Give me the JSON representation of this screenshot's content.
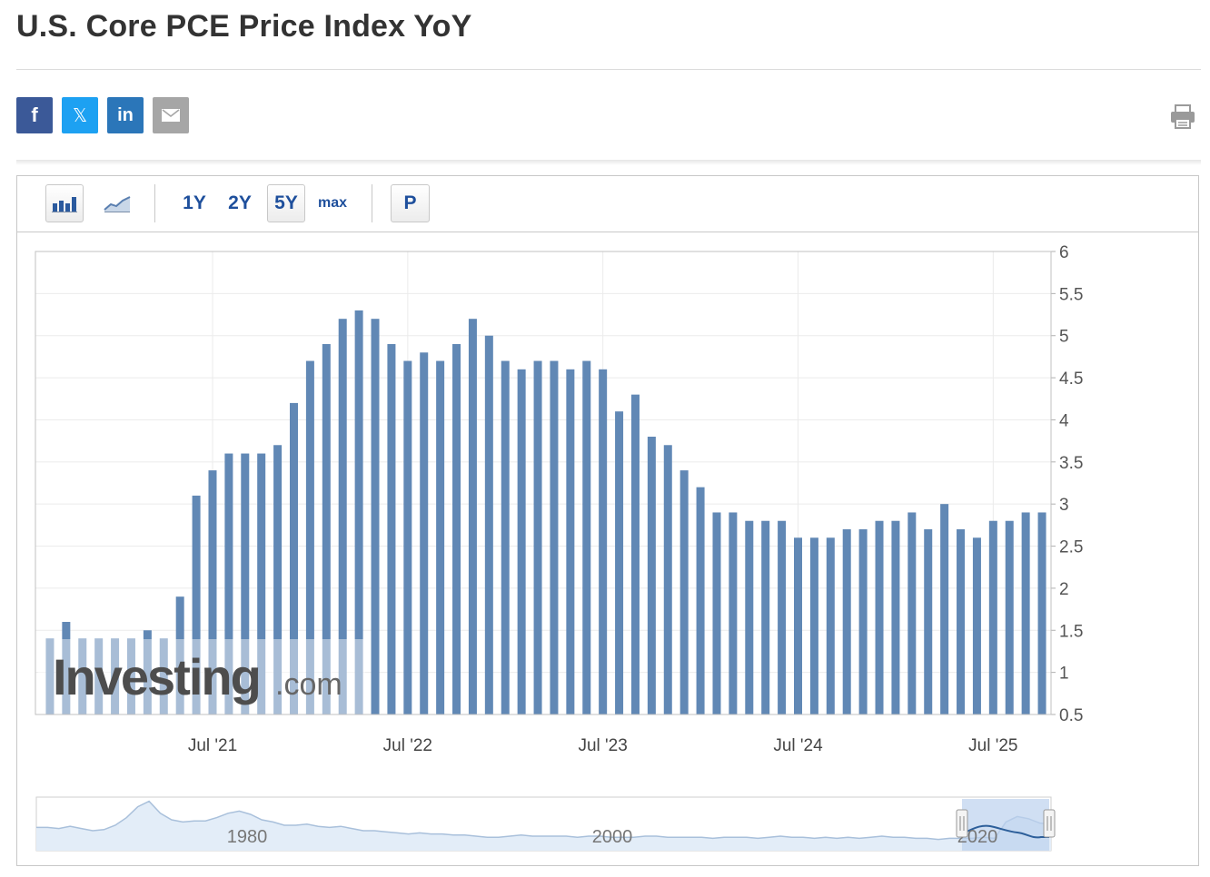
{
  "page": {
    "title": "U.S. Core PCE Price Index YoY"
  },
  "share": [
    {
      "name": "facebook",
      "glyph": "f",
      "color": "#3b5998",
      "icon": "facebook-icon"
    },
    {
      "name": "x",
      "glyph": "𝕏",
      "color": "#1da1f2",
      "icon": "x-twitter-icon"
    },
    {
      "name": "linkedin",
      "glyph": "in",
      "color": "#2b76b9",
      "icon": "linkedin-icon"
    },
    {
      "name": "email",
      "glyph": "",
      "color": "#a6a6a6",
      "icon": "envelope-icon"
    }
  ],
  "toolbar": {
    "bar_chart_icon": "bar-chart-icon",
    "line_chart_icon": "area-chart-icon",
    "ranges": [
      "1Y",
      "2Y",
      "5Y",
      "max"
    ],
    "active_range": "5Y",
    "p_label": "P"
  },
  "watermark": {
    "brand": "Investing",
    "suffix": ".com"
  },
  "chart_data": {
    "type": "bar",
    "title": "",
    "xlabel": "",
    "ylabel": "",
    "ylim": [
      0.5,
      6
    ],
    "yticks": [
      0.5,
      1,
      1.5,
      2,
      2.5,
      3,
      3.5,
      4,
      4.5,
      5,
      5.5,
      6
    ],
    "y_axis_position": "right",
    "grid": true,
    "bar_color": "#6188b5",
    "x_tick_labels": [
      "Jul '21",
      "Jul '22",
      "Jul '23",
      "Jul '24",
      "Jul '25"
    ],
    "x_tick_categories": [
      "2021-07",
      "2022-07",
      "2023-07",
      "2024-07",
      "2025-07"
    ],
    "categories": [
      "2020-09",
      "2020-10",
      "2020-11",
      "2020-12",
      "2021-01",
      "2021-02",
      "2021-03",
      "2021-04",
      "2021-05",
      "2021-06",
      "2021-07",
      "2021-08",
      "2021-09",
      "2021-10",
      "2021-11",
      "2021-12",
      "2022-01",
      "2022-02",
      "2022-03",
      "2022-04",
      "2022-05",
      "2022-06",
      "2022-07",
      "2022-08",
      "2022-09",
      "2022-10",
      "2022-11",
      "2022-12",
      "2023-01",
      "2023-02",
      "2023-03",
      "2023-04",
      "2023-05",
      "2023-06",
      "2023-07",
      "2023-08",
      "2023-09",
      "2023-10",
      "2023-11",
      "2023-12",
      "2024-01",
      "2024-02",
      "2024-03",
      "2024-04",
      "2024-05",
      "2024-06",
      "2024-07",
      "2024-08",
      "2024-09",
      "2024-10",
      "2024-11",
      "2024-12",
      "2025-01",
      "2025-02",
      "2025-03",
      "2025-04",
      "2025-05",
      "2025-06",
      "2025-07",
      "2025-08",
      "2025-09",
      "2025-10"
    ],
    "values": [
      1.4,
      1.6,
      1.4,
      1.4,
      1.4,
      1.4,
      1.5,
      1.4,
      1.9,
      3.1,
      3.4,
      3.6,
      3.6,
      3.6,
      3.7,
      4.2,
      4.7,
      4.9,
      5.2,
      5.3,
      5.2,
      4.9,
      4.7,
      4.8,
      4.7,
      4.9,
      5.2,
      5.0,
      4.7,
      4.6,
      4.7,
      4.7,
      4.6,
      4.7,
      4.6,
      4.1,
      4.3,
      3.8,
      3.7,
      3.4,
      3.2,
      2.9,
      2.9,
      2.8,
      2.8,
      2.8,
      2.6,
      2.6,
      2.6,
      2.7,
      2.7,
      2.8,
      2.8,
      2.9,
      2.7,
      3.0,
      2.7,
      2.6,
      2.8,
      2.8,
      2.9,
      2.9
    ]
  },
  "navigator": {
    "labels": [
      "1980",
      "2000",
      "2020"
    ],
    "series": [
      1.3,
      1.3,
      1.2,
      1.4,
      1.2,
      1.0,
      1.1,
      1.5,
      2.2,
      3.2,
      3.7,
      2.6,
      2.0,
      1.8,
      1.9,
      1.9,
      2.2,
      2.6,
      2.8,
      2.5,
      2.0,
      1.8,
      1.5,
      1.5,
      1.6,
      1.4,
      1.3,
      1.4,
      1.2,
      1.0,
      1.0,
      0.9,
      0.8,
      0.7,
      0.8,
      0.7,
      0.7,
      0.6,
      0.6,
      0.5,
      0.4,
      0.4,
      0.5,
      0.6,
      0.5,
      0.5,
      0.5,
      0.5,
      0.4,
      0.5,
      0.5,
      0.4,
      0.4,
      0.4,
      0.5,
      0.5,
      0.4,
      0.4,
      0.4,
      0.4,
      0.3,
      0.4,
      0.4,
      0.4,
      0.3,
      0.4,
      0.5,
      0.4,
      0.4,
      0.3,
      0.4,
      0.3,
      0.4,
      0.3,
      0.4,
      0.5,
      0.4,
      0.4,
      0.3,
      0.3,
      0.2,
      0.3,
      0.3,
      0.3,
      0.4,
      0.3,
      1.8,
      2.3,
      2.1,
      1.7,
      1.6
    ]
  }
}
